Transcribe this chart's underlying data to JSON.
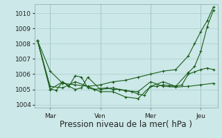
{
  "background_color": "#cce8e8",
  "grid_color": "#aacccc",
  "line_color": "#1a5c1a",
  "xlabel": "Pression niveau de la mer( hPa )",
  "xlabel_fontsize": 8.5,
  "ylim": [
    1003.8,
    1010.6
  ],
  "yticks": [
    1004,
    1005,
    1006,
    1007,
    1008,
    1009,
    1010
  ],
  "tick_fontsize": 6.5,
  "figsize": [
    3.2,
    2.0
  ],
  "dpi": 100,
  "xtick_labels": [
    "Mar",
    "Ven",
    "Mer",
    "Jeu"
  ],
  "xtick_positions": [
    12,
    60,
    108,
    156
  ],
  "vline_color": "#9ab8b8",
  "series1_x": [
    0,
    12,
    24,
    36,
    48,
    60,
    72,
    84,
    96,
    108,
    120,
    132,
    144,
    150,
    156,
    162,
    168
  ],
  "series1_y": [
    1008.2,
    1006.2,
    1005.4,
    1005.3,
    1005.2,
    1005.3,
    1005.5,
    1005.6,
    1005.8,
    1006.0,
    1006.2,
    1006.3,
    1007.2,
    1008.0,
    1008.8,
    1009.5,
    1010.4
  ],
  "series2_x": [
    0,
    12,
    18,
    24,
    30,
    36,
    42,
    48,
    54,
    60,
    66,
    72,
    78,
    84,
    90,
    96,
    102,
    108,
    114,
    120,
    126,
    132,
    138,
    144,
    150,
    156,
    162,
    168
  ],
  "series2_y": [
    1008.2,
    1005.0,
    1004.95,
    1005.5,
    1005.2,
    1005.9,
    1005.8,
    1005.1,
    1005.0,
    1005.05,
    1005.1,
    1005.0,
    1005.0,
    1004.95,
    1004.85,
    1004.7,
    1004.6,
    1005.2,
    1005.2,
    1005.3,
    1005.25,
    1005.2,
    1005.3,
    1006.0,
    1006.15,
    1006.3,
    1006.4,
    1006.3
  ],
  "series3_x": [
    0,
    12,
    24,
    30,
    36,
    42,
    48,
    60,
    72,
    84,
    96,
    108,
    120,
    132,
    144,
    156,
    168
  ],
  "series3_y": [
    1008.2,
    1005.0,
    1005.5,
    1005.2,
    1005.0,
    1005.1,
    1005.8,
    1005.0,
    1005.1,
    1004.9,
    1004.85,
    1005.5,
    1005.2,
    1005.15,
    1005.2,
    1005.3,
    1005.4
  ],
  "series4_x": [
    0,
    12,
    24,
    36,
    48,
    60,
    72,
    84,
    96,
    108,
    120,
    132,
    144,
    150,
    156,
    162,
    168
  ],
  "series4_y": [
    1008.2,
    1005.2,
    1005.1,
    1005.5,
    1005.2,
    1004.85,
    1004.85,
    1004.5,
    1004.4,
    1005.2,
    1005.5,
    1005.2,
    1006.1,
    1006.5,
    1007.5,
    1009.1,
    1010.2
  ],
  "total_hours": 168,
  "xlim": [
    -3,
    172
  ]
}
